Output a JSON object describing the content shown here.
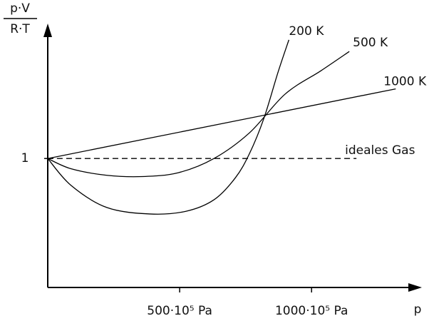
{
  "chart_data": {
    "type": "line",
    "ylabel_numerator": "p·V",
    "ylabel_denominator": "R·T",
    "xlabel": "p",
    "xlim": [
      0,
      1410
    ],
    "ylim": [
      0,
      2.03
    ],
    "xticks": [
      {
        "value": 500,
        "label": "500·10⁵ Pa"
      },
      {
        "value": 1000,
        "label": "1000·10⁵ Pa"
      }
    ],
    "yticks": [
      1
    ],
    "grid": false,
    "series": [
      {
        "name": "200 K",
        "color": "#000000",
        "x": [
          0,
          89,
          224,
          386,
          522,
          630,
          711,
          765,
          819,
          873,
          914
        ],
        "values": [
          1.0,
          0.79,
          0.62,
          0.57,
          0.59,
          0.68,
          0.85,
          1.04,
          1.31,
          1.67,
          1.92
        ]
      },
      {
        "name": "500 K",
        "color": "#000000",
        "x": [
          0,
          89,
          224,
          359,
          495,
          630,
          765,
          900,
          1035,
          1143
        ],
        "values": [
          1.0,
          0.92,
          0.87,
          0.86,
          0.89,
          1.0,
          1.2,
          1.5,
          1.68,
          1.83
        ]
      },
      {
        "name": "1000 K",
        "color": "#000000",
        "x": [
          0,
          1319
        ],
        "values": [
          1.0,
          1.54
        ]
      },
      {
        "name": "ideales Gas",
        "color": "#000000",
        "dashed": true,
        "x": [
          0,
          1170
        ],
        "values": [
          1.0,
          1.0
        ]
      }
    ]
  }
}
